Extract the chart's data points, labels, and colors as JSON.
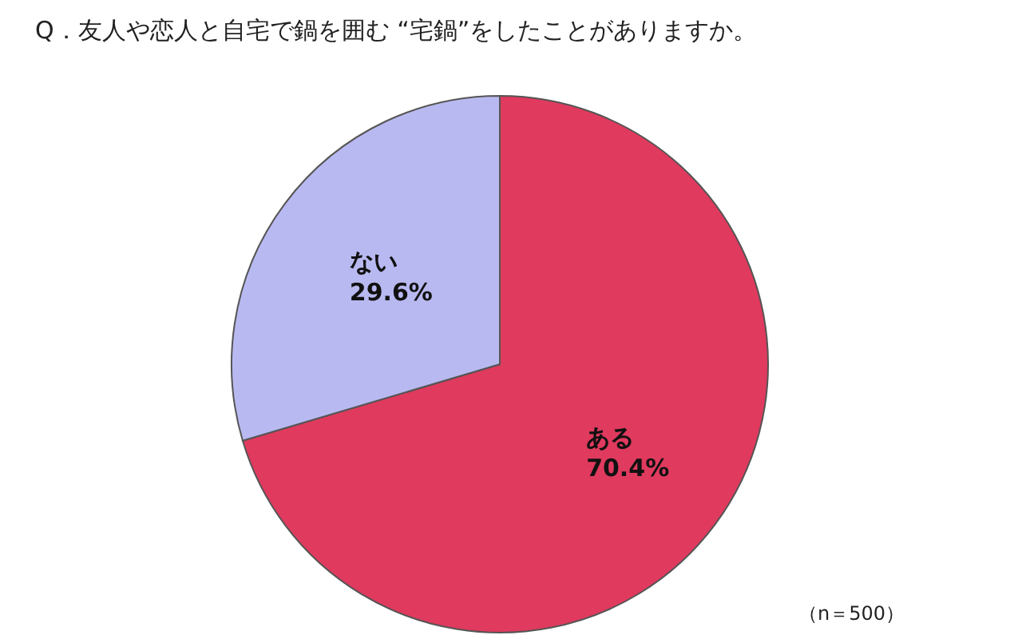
{
  "chart_data": {
    "type": "pie",
    "title": "Q．友人や恋人と自宅で鍋を囲む “宅鍋”をしたことがありますか。",
    "categories": [
      "ある",
      "ない"
    ],
    "values": [
      70.4,
      29.6
    ],
    "colors": [
      "#e03a5e",
      "#b9b9f2"
    ],
    "value_labels": [
      "70.4%",
      "29.6%"
    ],
    "annotations": [
      "（n＝500）"
    ]
  }
}
